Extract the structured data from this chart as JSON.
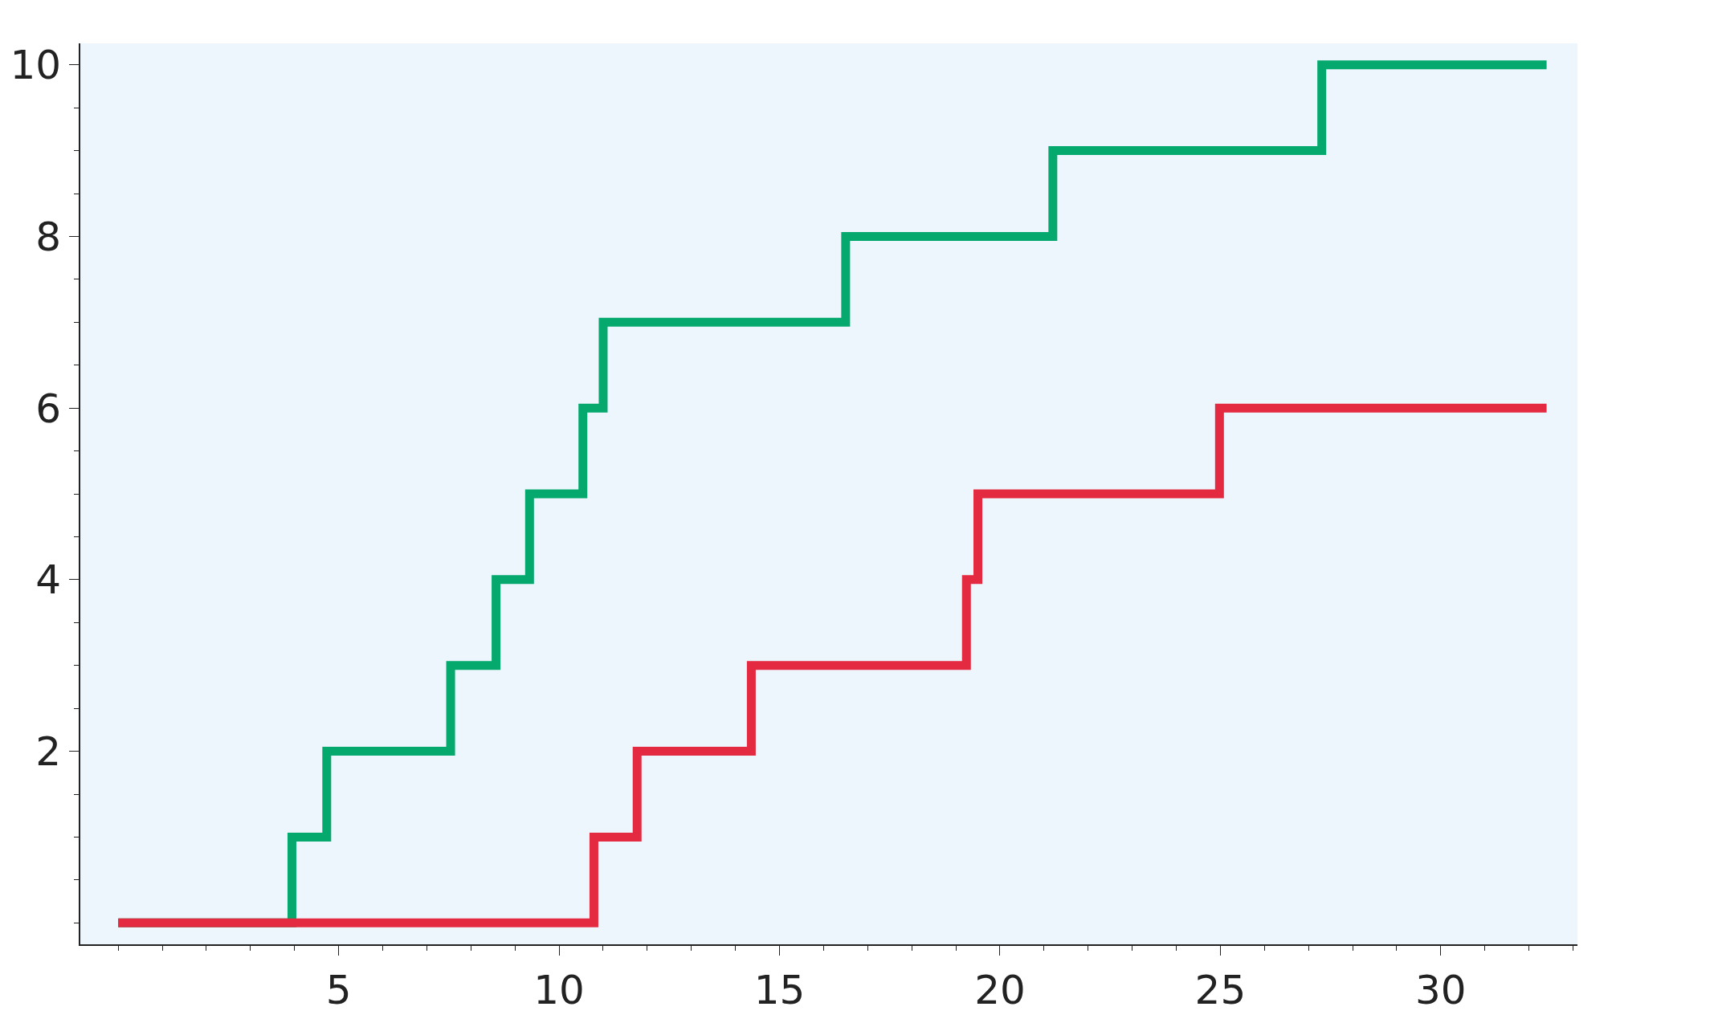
{
  "chart_data": {
    "type": "step",
    "xlim": [
      -0.86,
      33.1
    ],
    "ylim": [
      -0.25,
      10.25
    ],
    "xticks": [
      5,
      10,
      15,
      20,
      25,
      30
    ],
    "yticks": [
      2,
      4,
      6,
      8,
      10
    ],
    "grid": false,
    "legend": false,
    "marker": "none",
    "line_style": "solid",
    "series": [
      {
        "color": "#05a86d",
        "x": [
          0,
          3.94,
          4.73,
          7.54,
          8.57,
          9.33,
          10.54,
          11.0,
          16.5,
          21.2,
          27.3,
          32.4
        ],
        "values": [
          0,
          1,
          2,
          3,
          4,
          5,
          6,
          7,
          8,
          9,
          10,
          10
        ]
      },
      {
        "color": "#e32a40",
        "x": [
          0,
          10.79,
          11.77,
          14.36,
          19.24,
          19.5,
          24.98,
          32.4
        ],
        "values": [
          0,
          1,
          2,
          3,
          4,
          5,
          6,
          6
        ]
      }
    ]
  }
}
